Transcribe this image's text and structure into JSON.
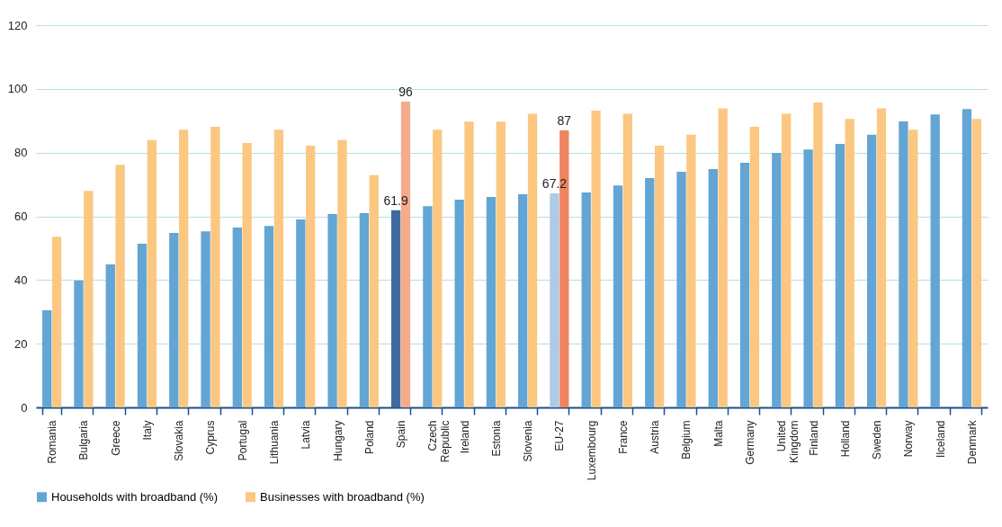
{
  "chart_data": {
    "type": "bar",
    "categories": [
      "Romania",
      "Bulgaria",
      "Greece",
      "Italy",
      "Slovakia",
      "Cyprus",
      "Portugal",
      "Lithuania",
      "Latvia",
      "Hungary",
      "Poland",
      "Spain",
      "Czech Republic",
      "Ireland",
      "Estonia",
      "Slovenia",
      "EU-27",
      "Luxembourg",
      "France",
      "Austria",
      "Belgium",
      "Malta",
      "Germany",
      "United Kingdom",
      "Finland",
      "Holland",
      "Sweden",
      "Norway",
      "Ilceland",
      "Denmark"
    ],
    "series": [
      {
        "name": "Households with broadband (%)",
        "color": "#63a5d4",
        "colors": [
          "#63a5d4",
          "#63a5d4",
          "#63a5d4",
          "#63a5d4",
          "#63a5d4",
          "#63a5d4",
          "#63a5d4",
          "#63a5d4",
          "#63a5d4",
          "#63a5d4",
          "#63a5d4",
          "#3f6b9c",
          "#63a5d4",
          "#63a5d4",
          "#63a5d4",
          "#63a5d4",
          "#aecae4",
          "#63a5d4",
          "#63a5d4",
          "#63a5d4",
          "#63a5d4",
          "#63a5d4",
          "#63a5d4",
          "#63a5d4",
          "#63a5d4",
          "#63a5d4",
          "#63a5d4",
          "#63a5d4",
          "#63a5d4",
          "#63a5d4"
        ],
        "values": [
          30.5,
          39.8,
          44.9,
          51.4,
          54.8,
          55.3,
          56.5,
          57.0,
          59.0,
          60.7,
          61.0,
          61.9,
          63.2,
          65.2,
          66.1,
          66.9,
          67.2,
          67.5,
          69.7,
          72.0,
          74.0,
          74.8,
          76.8,
          79.9,
          81.0,
          82.7,
          85.6,
          89.8,
          92.0,
          93.7
        ],
        "value_labels": [
          null,
          null,
          null,
          null,
          null,
          null,
          null,
          null,
          null,
          null,
          null,
          "61.9",
          null,
          null,
          null,
          null,
          "67.2",
          null,
          null,
          null,
          null,
          null,
          null,
          null,
          null,
          null,
          null,
          null,
          null,
          null
        ]
      },
      {
        "name": "Businesses with broadband (%)",
        "color": "#fbc781",
        "colors": [
          "#fbc781",
          "#fbc781",
          "#fbc781",
          "#fbc781",
          "#fbc781",
          "#fbc781",
          "#fbc781",
          "#fbc781",
          "#fbc781",
          "#fbc781",
          "#fbc781",
          "#f4ab8c",
          "#fbc781",
          "#fbc781",
          "#fbc781",
          "#fbc781",
          "#ee8460",
          "#fbc781",
          "#fbc781",
          "#fbc781",
          "#fbc781",
          "#fbc781",
          "#fbc781",
          "#fbc781",
          "#fbc781",
          "#fbc781",
          "#fbc781",
          "#fbc781",
          "#fbc781",
          "#fbc781"
        ],
        "values": [
          53.6,
          68.0,
          76.2,
          83.9,
          87.2,
          88.1,
          83.0,
          87.2,
          82.2,
          83.9,
          72.9,
          96,
          87.2,
          89.7,
          89.7,
          92.2,
          87,
          93.2,
          92.2,
          82.2,
          85.6,
          93.9,
          88.1,
          92.2,
          95.7,
          90.6,
          93.9,
          87.2,
          null,
          90.6
        ],
        "value_labels": [
          null,
          null,
          null,
          null,
          null,
          null,
          null,
          null,
          null,
          null,
          null,
          "96",
          null,
          null,
          null,
          null,
          "87",
          null,
          null,
          null,
          null,
          null,
          null,
          null,
          null,
          null,
          null,
          null,
          null,
          null
        ]
      }
    ],
    "ylim": [
      0,
      120
    ],
    "yticks": [
      0,
      20,
      40,
      60,
      80,
      100,
      120
    ],
    "grid": "y",
    "legend": "bottom"
  }
}
